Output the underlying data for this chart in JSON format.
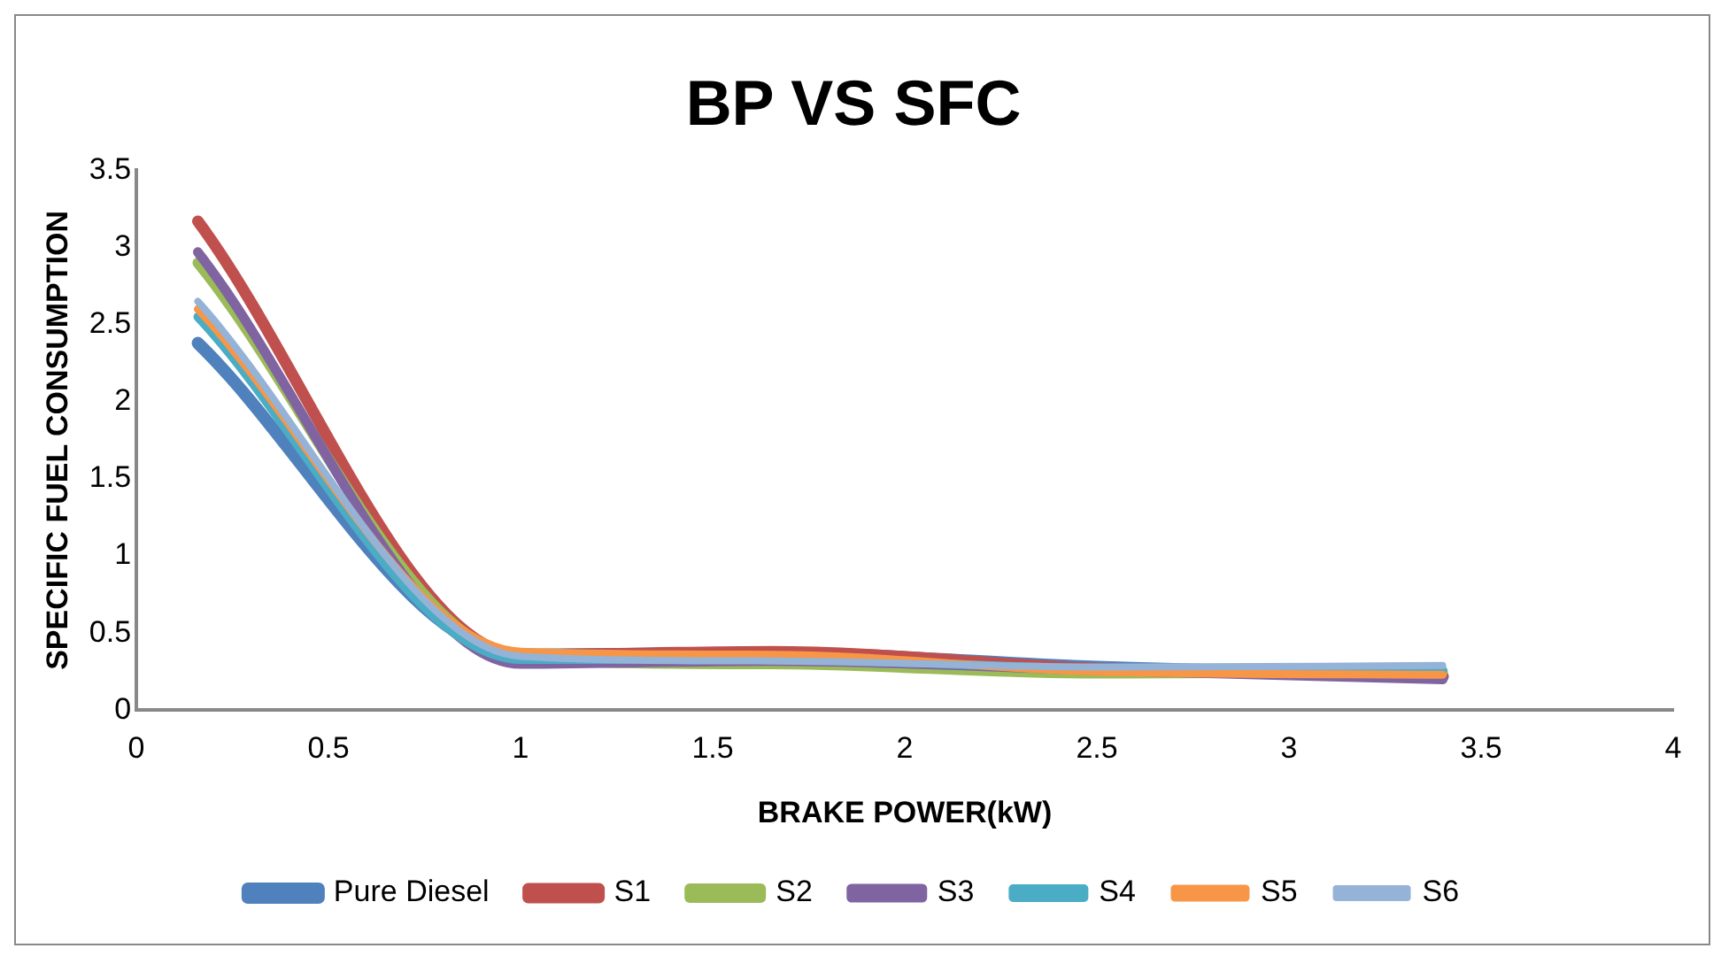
{
  "chart_data": {
    "type": "line",
    "title": "BP VS SFC",
    "xlabel": "BRAKE POWER(kW)",
    "ylabel": "SPECIFIC FUEL CONSUMPTION",
    "x": [
      0.16,
      1.0,
      1.65,
      2.5,
      3.4
    ],
    "series": [
      {
        "name": "Pure Diesel",
        "color": "#4f81bd",
        "values": [
          2.38,
          0.36,
          0.37,
          0.28,
          0.22
        ]
      },
      {
        "name": "S1",
        "color": "#c0504d",
        "values": [
          3.17,
          0.36,
          0.38,
          0.27,
          0.22
        ]
      },
      {
        "name": "S2",
        "color": "#9bbb59",
        "values": [
          2.9,
          0.34,
          0.3,
          0.24,
          0.25
        ]
      },
      {
        "name": "S3",
        "color": "#8064a2",
        "values": [
          2.97,
          0.3,
          0.32,
          0.26,
          0.2
        ]
      },
      {
        "name": "S4",
        "color": "#4bacc6",
        "values": [
          2.55,
          0.33,
          0.33,
          0.27,
          0.26
        ]
      },
      {
        "name": "S5",
        "color": "#f79646",
        "values": [
          2.6,
          0.38,
          0.36,
          0.25,
          0.23
        ]
      },
      {
        "name": "S6",
        "color": "#95b3d7",
        "values": [
          2.65,
          0.35,
          0.32,
          0.28,
          0.29
        ]
      }
    ],
    "xlim": [
      0,
      4
    ],
    "xticks": [
      0,
      0.5,
      1,
      1.5,
      2,
      2.5,
      3,
      3.5,
      4
    ],
    "ylim": [
      0,
      3.5
    ],
    "yticks": [
      0,
      0.5,
      1,
      1.5,
      2,
      2.5,
      3,
      3.5
    ],
    "grid": false,
    "legend": "bottom",
    "marker": "none",
    "line_style": "solid"
  }
}
